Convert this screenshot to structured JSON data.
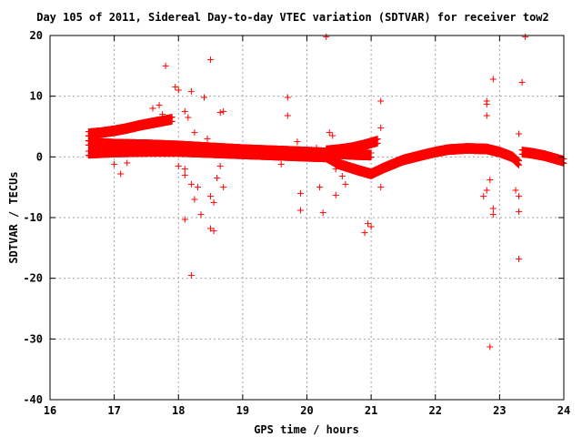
{
  "chart_data": {
    "type": "scatter",
    "title": "Day 105 of 2011, Sidereal Day-to-day VTEC variation (SDTVAR) for receiver tow2",
    "xlabel": "GPS time / hours",
    "ylabel": "SDTVAR / TECUs",
    "xlim": [
      16,
      24
    ],
    "ylim": [
      -40,
      20
    ],
    "xticks": [
      16,
      17,
      18,
      19,
      20,
      21,
      22,
      23,
      24
    ],
    "yticks": [
      -40,
      -30,
      -20,
      -10,
      0,
      10,
      20
    ],
    "grid": true,
    "marker": "+",
    "colors": {
      "points": "#ff0000",
      "grid": "#a0a0a0",
      "axis": "#000000"
    },
    "dense_bands": [
      {
        "name": "upper band",
        "x": [
          16.6,
          16.8,
          17.0,
          17.2,
          17.4,
          17.6,
          17.8,
          17.9
        ],
        "y": [
          3.8,
          4.0,
          4.3,
          4.7,
          5.2,
          5.6,
          6.0,
          6.2
        ]
      },
      {
        "name": "middle band",
        "x": [
          16.6,
          17.0,
          17.5,
          18.0,
          18.5,
          19.0,
          19.5,
          20.0,
          20.4,
          20.7,
          21.0
        ],
        "y": [
          2.3,
          2.1,
          2.0,
          1.8,
          1.5,
          1.2,
          1.0,
          0.8,
          0.6,
          0.4,
          0.3
        ]
      },
      {
        "name": "lower band",
        "x": [
          16.6,
          17.0,
          17.5,
          18.0,
          18.5,
          19.0,
          19.5,
          20.0,
          20.3,
          20.5,
          20.8,
          21.0,
          21.2,
          21.5,
          21.8,
          22.0,
          22.2,
          22.5,
          22.8,
          23.0,
          23.2,
          23.3
        ],
        "y": [
          0.6,
          0.8,
          0.9,
          0.9,
          0.7,
          0.5,
          0.3,
          0.1,
          0.0,
          -1.2,
          -2.2,
          -2.8,
          -1.8,
          -0.5,
          0.3,
          0.8,
          1.2,
          1.4,
          1.3,
          0.8,
          0.0,
          -1.0
        ]
      },
      {
        "name": "rising band",
        "x": [
          20.3,
          20.5,
          20.7,
          20.9,
          21.1
        ],
        "y": [
          1.0,
          1.2,
          1.5,
          2.0,
          2.6
        ]
      },
      {
        "name": "tail band",
        "x": [
          23.35,
          23.5,
          23.7,
          23.9,
          24.0
        ],
        "y": [
          0.8,
          0.6,
          0.2,
          -0.4,
          -0.7
        ]
      }
    ],
    "outliers": [
      [
        17.1,
        -2.8
      ],
      [
        17.0,
        -1.2
      ],
      [
        17.2,
        -1.0
      ],
      [
        17.6,
        8.0
      ],
      [
        17.7,
        8.5
      ],
      [
        17.8,
        15.0
      ],
      [
        17.75,
        7.0
      ],
      [
        17.95,
        11.5
      ],
      [
        18.0,
        11.0
      ],
      [
        18.1,
        7.5
      ],
      [
        18.15,
        6.5
      ],
      [
        18.05,
        2.0
      ],
      [
        18.0,
        -1.5
      ],
      [
        18.1,
        -2.0
      ],
      [
        18.1,
        -3.0
      ],
      [
        18.2,
        -4.5
      ],
      [
        18.25,
        -7.0
      ],
      [
        18.3,
        -5.0
      ],
      [
        18.35,
        -9.5
      ],
      [
        18.1,
        -10.3
      ],
      [
        18.2,
        -19.5
      ],
      [
        18.2,
        10.8
      ],
      [
        18.25,
        4.0
      ],
      [
        18.4,
        9.8
      ],
      [
        18.45,
        3.0
      ],
      [
        18.5,
        16.0
      ],
      [
        18.5,
        -6.5
      ],
      [
        18.55,
        -7.5
      ],
      [
        18.5,
        -11.8
      ],
      [
        18.55,
        -12.2
      ],
      [
        18.65,
        7.3
      ],
      [
        18.7,
        7.5
      ],
      [
        18.65,
        -1.5
      ],
      [
        18.6,
        -3.5
      ],
      [
        18.7,
        -5.0
      ],
      [
        19.6,
        -1.2
      ],
      [
        19.7,
        9.8
      ],
      [
        19.7,
        6.8
      ],
      [
        19.85,
        2.5
      ],
      [
        19.9,
        -6.0
      ],
      [
        19.9,
        -8.8
      ],
      [
        20.15,
        1.5
      ],
      [
        20.2,
        -5.0
      ],
      [
        20.25,
        -9.2
      ],
      [
        20.3,
        19.8
      ],
      [
        20.35,
        4.0
      ],
      [
        20.4,
        3.5
      ],
      [
        20.45,
        -2.0
      ],
      [
        20.45,
        -6.3
      ],
      [
        20.55,
        -3.2
      ],
      [
        20.6,
        -4.5
      ],
      [
        20.9,
        -12.5
      ],
      [
        20.95,
        -11.0
      ],
      [
        21.0,
        -11.5
      ],
      [
        21.15,
        9.2
      ],
      [
        21.15,
        4.8
      ],
      [
        21.15,
        -5.0
      ],
      [
        22.8,
        9.2
      ],
      [
        22.8,
        8.7
      ],
      [
        22.8,
        6.8
      ],
      [
        22.8,
        -5.5
      ],
      [
        22.75,
        -6.5
      ],
      [
        22.85,
        -3.8
      ],
      [
        22.9,
        -8.5
      ],
      [
        22.9,
        -9.5
      ],
      [
        22.9,
        12.8
      ],
      [
        22.85,
        -31.3
      ],
      [
        23.25,
        -5.5
      ],
      [
        23.3,
        -6.5
      ],
      [
        23.3,
        -9.0
      ],
      [
        23.3,
        3.8
      ],
      [
        23.35,
        12.3
      ],
      [
        23.3,
        -16.8
      ],
      [
        23.4,
        19.8
      ]
    ]
  }
}
